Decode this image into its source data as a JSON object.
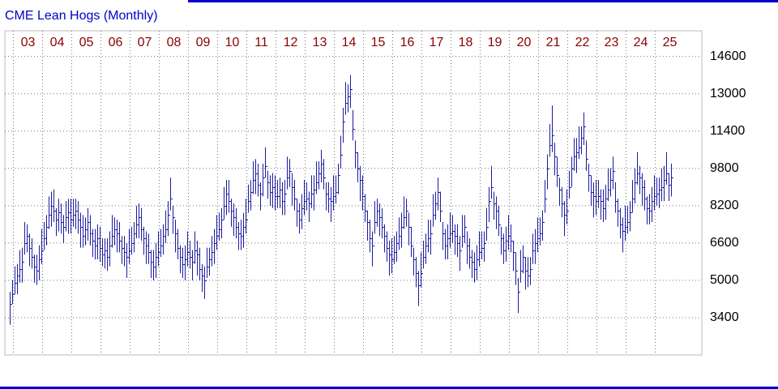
{
  "chart_data": {
    "type": "hlc",
    "title": "CME Lean Hogs (Monthly)",
    "color": "#1c1ca0",
    "grid": true,
    "ylim": [
      1800,
      15700
    ],
    "yticks": [
      3400,
      5000,
      6600,
      8200,
      9800,
      11400,
      13000,
      14600
    ],
    "categories": [
      null,
      null,
      null,
      null,
      null,
      null,
      null,
      null,
      "03",
      null,
      null,
      null,
      null,
      null,
      null,
      null,
      null,
      null,
      null,
      null,
      "04",
      null,
      null,
      null,
      null,
      null,
      null,
      null,
      null,
      null,
      null,
      null,
      "05",
      null,
      null,
      null,
      null,
      null,
      null,
      null,
      null,
      null,
      null,
      null,
      "06",
      null,
      null,
      null,
      null,
      null,
      null,
      null,
      null,
      null,
      null,
      null,
      "07",
      null,
      null,
      null,
      null,
      null,
      null,
      null,
      null,
      null,
      null,
      null,
      "08",
      null,
      null,
      null,
      null,
      null,
      null,
      null,
      null,
      null,
      null,
      null,
      "09",
      null,
      null,
      null,
      null,
      null,
      null,
      null,
      null,
      null,
      null,
      null,
      "10",
      null,
      null,
      null,
      null,
      null,
      null,
      null,
      null,
      null,
      null,
      null,
      "11",
      null,
      null,
      null,
      null,
      null,
      null,
      null,
      null,
      null,
      null,
      null,
      "12",
      null,
      null,
      null,
      null,
      null,
      null,
      null,
      null,
      null,
      null,
      null,
      "13",
      null,
      null,
      null,
      null,
      null,
      null,
      null,
      null,
      null,
      null,
      null,
      "14",
      null,
      null,
      null,
      null,
      null,
      null,
      null,
      null,
      null,
      null,
      null,
      "15",
      null,
      null,
      null,
      null,
      null,
      null,
      null,
      null,
      null,
      null,
      null,
      "16",
      null,
      null,
      null,
      null,
      null,
      null,
      null,
      null,
      null,
      null,
      null,
      "17",
      null,
      null,
      null,
      null,
      null,
      null,
      null,
      null,
      null,
      null,
      null,
      "18",
      null,
      null,
      null,
      null,
      null,
      null,
      null,
      null,
      null,
      null,
      null,
      "19",
      null,
      null,
      null,
      null,
      null,
      null,
      null,
      null,
      null,
      null,
      null,
      "20",
      null,
      null,
      null,
      null,
      null,
      null,
      null,
      null,
      null,
      null,
      null,
      "21",
      null,
      null,
      null,
      null,
      null,
      null,
      null,
      null,
      null,
      null,
      null,
      "22",
      null,
      null,
      null,
      null,
      null,
      null,
      null,
      null,
      null,
      null,
      null,
      "23",
      null,
      null,
      null,
      null,
      null,
      null,
      null,
      null,
      null,
      null,
      null,
      "24",
      null,
      null,
      null,
      null,
      null,
      null,
      null,
      null,
      null,
      null,
      null,
      "25"
    ],
    "high": [
      4500,
      5000,
      5600,
      5700,
      6300,
      6400,
      7500,
      7400,
      7000,
      6800,
      6100,
      6100,
      6500,
      7200,
      7500,
      7800,
      8600,
      8800,
      8900,
      8100,
      8500,
      8300,
      7800,
      8400,
      8500,
      8500,
      8500,
      8500,
      8400,
      7900,
      7800,
      7700,
      8100,
      7800,
      7200,
      7200,
      7400,
      7300,
      6800,
      6800,
      6800,
      7100,
      7800,
      7700,
      7600,
      7500,
      6900,
      6900,
      6600,
      7200,
      7300,
      7500,
      8200,
      8300,
      8100,
      7300,
      7100,
      7000,
      6300,
      6300,
      6600,
      7100,
      7200,
      7400,
      8000,
      8400,
      9400,
      8200,
      7600,
      7200,
      6500,
      6400,
      6500,
      7100,
      6700,
      6300,
      7100,
      6700,
      6400,
      5700,
      5600,
      6400,
      6400,
      6900,
      7200,
      7800,
      7900,
      8100,
      9000,
      9300,
      9300,
      8500,
      8300,
      8100,
      7500,
      7600,
      7900,
      8500,
      9100,
      9300,
      10100,
      10200,
      10000,
      9200,
      10000,
      10700,
      9700,
      9500,
      9600,
      9500,
      9300,
      9400,
      9200,
      9300,
      10300,
      10200,
      9600,
      9300,
      8500,
      8300,
      8700,
      9300,
      9200,
      8800,
      9500,
      9500,
      10100,
      10100,
      10600,
      10200,
      9200,
      9200,
      9000,
      9500,
      9500,
      10000,
      11200,
      12400,
      13500,
      13400,
      13800,
      12300,
      11000,
      10500,
      9900,
      9500,
      8700,
      8000,
      7600,
      7100,
      8400,
      8500,
      8300,
      8100,
      7400,
      7100,
      6700,
      6800,
      6900,
      7100,
      7700,
      7900,
      8600,
      8500,
      7900,
      7300,
      6400,
      6000,
      5400,
      6200,
      6700,
      7000,
      7600,
      7600,
      8700,
      8800,
      9400,
      8800,
      7500,
      7200,
      7400,
      7900,
      7800,
      7400,
      7400,
      6900,
      7800,
      7800,
      7100,
      6800,
      6300,
      6200,
      6500,
      7100,
      7100,
      7100,
      8100,
      9000,
      9900,
      8800,
      8600,
      8200,
      7300,
      7000,
      7300,
      7800,
      7400,
      6700,
      6200,
      5100,
      6300,
      6500,
      6000,
      6000,
      6000,
      7000,
      7200,
      7700,
      7700,
      8000,
      9300,
      10400,
      11700,
      12500,
      10900,
      10300,
      9400,
      9000,
      8400,
      8900,
      9700,
      10300,
      11100,
      11100,
      11600,
      11600,
      12200,
      11000,
      10000,
      9500,
      9200,
      9300,
      9300,
      8900,
      8900,
      9100,
      9800,
      9800,
      10300,
      9200,
      8500,
      8100,
      7700,
      8200,
      8200,
      8400,
      9300,
      9800,
      10500,
      9900,
      9600,
      9300,
      8600,
      8700,
      9000,
      9500,
      9400,
      9400,
      9800,
      9900,
      10500,
      9600,
      10000
    ],
    "low": [
      3100,
      4000,
      4400,
      4400,
      4900,
      4900,
      6100,
      6200,
      5600,
      5500,
      4900,
      4800,
      5000,
      5700,
      6300,
      6500,
      7200,
      7300,
      7500,
      6900,
      7100,
      7000,
      6600,
      7100,
      7000,
      7000,
      7300,
      7200,
      7000,
      6400,
      6400,
      6500,
      6700,
      6500,
      6000,
      5900,
      5900,
      5800,
      5600,
      5500,
      5400,
      5600,
      6400,
      6500,
      6200,
      6200,
      5700,
      5600,
      5100,
      5700,
      6100,
      6200,
      6800,
      6800,
      6700,
      6100,
      5700,
      5700,
      5100,
      5000,
      5100,
      5600,
      6000,
      6100,
      6600,
      6900,
      8000,
      7000,
      6200,
      5900,
      5300,
      5100,
      5000,
      5600,
      5500,
      5000,
      5700,
      5200,
      5000,
      4500,
      4200,
      5100,
      5200,
      5600,
      5700,
      6300,
      6700,
      6800,
      7600,
      7800,
      7900,
      7300,
      6900,
      6800,
      6300,
      6300,
      6400,
      7000,
      7900,
      8000,
      8700,
      8700,
      8600,
      8000,
      8600,
      9400,
      8500,
      8200,
      8100,
      8000,
      8100,
      8100,
      7800,
      7800,
      8900,
      9000,
      8200,
      8000,
      7300,
      7000,
      7200,
      7800,
      8000,
      7500,
      8100,
      8000,
      8700,
      8900,
      9200,
      8900,
      8000,
      7900,
      7500,
      8000,
      8300,
      8700,
      9800,
      10900,
      12100,
      12200,
      12400,
      11000,
      9800,
      9200,
      8400,
      8000,
      7500,
      6700,
      6200,
      5600,
      7000,
      7300,
      6900,
      6800,
      6200,
      5800,
      5200,
      5300,
      5700,
      5800,
      6300,
      6400,
      7200,
      7300,
      6500,
      6000,
      5200,
      4700,
      3900,
      4700,
      5500,
      5700,
      6200,
      6100,
      7300,
      7600,
      8000,
      7500,
      6300,
      5900,
      5900,
      6400,
      6600,
      6100,
      6000,
      5400,
      6400,
      6600,
      5700,
      5500,
      5100,
      4900,
      5000,
      5600,
      5900,
      5800,
      6700,
      7500,
      8500,
      7600,
      7200,
      6900,
      6100,
      5700,
      5800,
      6300,
      6200,
      5400,
      4800,
      3600,
      4900,
      5300,
      4600,
      4700,
      4800,
      5700,
      5700,
      6200,
      6500,
      6700,
      7900,
      8900,
      10300,
      10500,
      9500,
      9000,
      8200,
      7700,
      6900,
      7400,
      8500,
      9000,
      9700,
      9600,
      10200,
      10400,
      10800,
      9700,
      8800,
      8200,
      7700,
      7800,
      8100,
      7600,
      7500,
      7600,
      8400,
      8600,
      8900,
      7900,
      7300,
      6800,
      6200,
      6700,
      7000,
      7100,
      7900,
      8300,
      9100,
      8700,
      8200,
      8000,
      7400,
      7400,
      7500,
      8000,
      8200,
      8100,
      8400,
      8400,
      9100,
      8400,
      8600
    ],
    "close": [
      4000,
      4400,
      4900,
      5200,
      5500,
      5800,
      6600,
      6900,
      6400,
      6000,
      5600,
      5400,
      5900,
      6300,
      6800,
      7300,
      7800,
      8200,
      8000,
      7600,
      7900,
      7500,
      7300,
      7700,
      7900,
      7600,
      7800,
      8000,
      7600,
      7300,
      6900,
      7200,
      7500,
      7000,
      6700,
      6500,
      6800,
      6400,
      6100,
      6300,
      6000,
      6500,
      6900,
      7200,
      7000,
      6700,
      6400,
      6200,
      6000,
      6300,
      6600,
      7000,
      7400,
      7700,
      7200,
      6800,
      6500,
      6200,
      5800,
      5600,
      6000,
      6200,
      6500,
      6900,
      7200,
      7800,
      8500,
      7700,
      7000,
      6400,
      6000,
      5700,
      5900,
      6200,
      6000,
      5800,
      6300,
      6100,
      5500,
      5200,
      5000,
      5600,
      5900,
      6200,
      6600,
      6900,
      7200,
      7600,
      8200,
      8700,
      8400,
      8000,
      7700,
      7300,
      7000,
      6900,
      7300,
      7600,
      8400,
      8800,
      9300,
      9600,
      9100,
      8700,
      9400,
      9900,
      9200,
      8800,
      9000,
      8600,
      8600,
      8900,
      8400,
      8700,
      9400,
      9700,
      9000,
      8500,
      8000,
      7600,
      8100,
      8400,
      8500,
      8300,
      8700,
      8900,
      9200,
      9600,
      10000,
      9400,
      8700,
      8500,
      8400,
      8600,
      8800,
      9500,
      10400,
      11800,
      12600,
      12900,
      13200,
      11500,
      10500,
      9800,
      9300,
      8600,
      8000,
      7500,
      6800,
      6500,
      7500,
      8000,
      7700,
      7300,
      6900,
      6400,
      6100,
      5900,
      6200,
      6600,
      6900,
      7300,
      7700,
      8000,
      7300,
      6500,
      5900,
      5300,
      4800,
      5300,
      6000,
      6500,
      6800,
      7000,
      7800,
      8300,
      8800,
      8000,
      7000,
      6500,
      6800,
      7000,
      7100,
      6900,
      6600,
      6300,
      6900,
      7300,
      6500,
      6000,
      5800,
      5500,
      5900,
      6200,
      6400,
      6600,
      7300,
      8400,
      9000,
      8300,
      8000,
      7400,
      6800,
      6300,
      6700,
      6900,
      6700,
      6200,
      5400,
      4500,
      5400,
      6000,
      5400,
      5200,
      5500,
      6300,
      6600,
      6800,
      7000,
      7500,
      8500,
      9800,
      10800,
      11200,
      10300,
      9500,
      8900,
      8300,
      7800,
      8000,
      9000,
      9800,
      10300,
      10500,
      10700,
      11100,
      11600,
      10200,
      9500,
      8800,
      8600,
      8400,
      8600,
      8400,
      8100,
      8500,
      8900,
      9300,
      9700,
      8400,
      8000,
      7400,
      7100,
      7300,
      7500,
      7900,
      8500,
      9200,
      9600,
      9400,
      9000,
      8500,
      8100,
      8000,
      8400,
      8600,
      8700,
      8900,
      9000,
      9300,
      9600,
      9100,
      9400
    ]
  }
}
